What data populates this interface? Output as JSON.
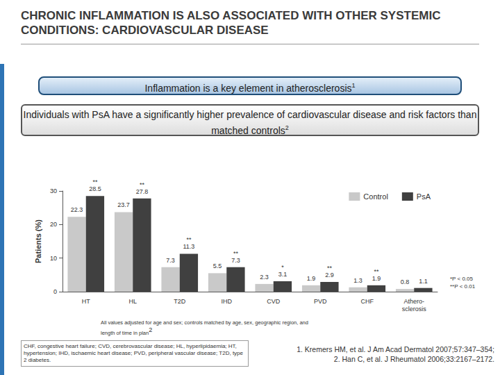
{
  "header": {
    "title": "CHRONIC INFLAMMATION IS ALSO ASSOCIATED WITH OTHER SYSTEMIC CONDITIONS: CARDIOVASCULAR DISEASE"
  },
  "boxes": [
    {
      "text": "Inflammation is a key element in atherosclerosis",
      "ref": "1"
    },
    {
      "text": "Individuals with PsA have a significantly higher prevalence of cardiovascular disease and risk factors than matched controls",
      "ref": "2"
    }
  ],
  "chart_data": {
    "type": "bar",
    "categories": [
      "HT",
      "HL",
      "T2D",
      "IHD",
      "CVD",
      "PVD",
      "CHF",
      "Athero-\nsclerosis"
    ],
    "series": [
      {
        "name": "Control",
        "color": "#c9c9c9",
        "values": [
          22.3,
          23.7,
          7.3,
          5.5,
          2.3,
          1.9,
          1.3,
          0.8
        ]
      },
      {
        "name": "PsA",
        "color": "#404040",
        "values": [
          28.5,
          27.8,
          11.3,
          7.3,
          3.1,
          2.9,
          1.9,
          1.1
        ],
        "significance": [
          "**",
          "**",
          "**",
          "**",
          "*",
          "**",
          "**",
          null
        ]
      }
    ],
    "y_label": "Patients (%)",
    "ylim": [
      0,
      30
    ],
    "yticks": [
      0,
      10,
      20,
      30
    ],
    "grid": false,
    "legend": "top-right",
    "data_labels": true,
    "annotations": [
      "*P < 0.05",
      "**P < 0.01"
    ],
    "note": {
      "text": "All values adjusted for age and sex; controls matched by age, sex, geographic region, and length of time in plan",
      "ref": "2"
    }
  },
  "abbreviations": "CHF, congestive heart failure; CVD, cerebrovascular disease; HL, hyperlipidaemia; HT, hypertension; IHD, ischaemic heart disease; PVD, peripheral vascular disease; T2D, type 2 diabetes.",
  "references": [
    "1. Kremers HM, et al. J Am Acad Dermatol 2007;57:347–354;",
    "2. Han C, et al. J Rheumatol 2006;33:2167–2172."
  ]
}
